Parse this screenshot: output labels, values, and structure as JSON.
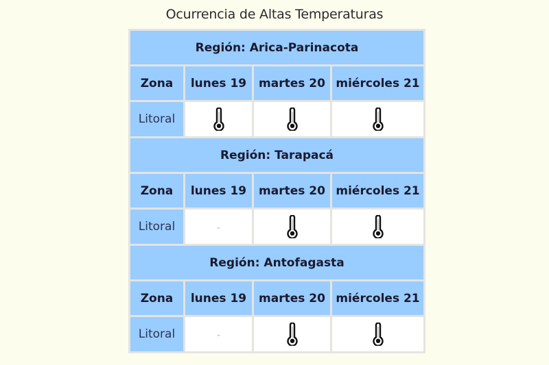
{
  "title": "Ocurrencia de Altas Temperaturas",
  "columns": {
    "zone": "Zona",
    "days": [
      "lunes 19",
      "martes 20",
      "miércoles 21"
    ]
  },
  "colors": {
    "header_bg": "#99ccff",
    "cell_bg": "#ffffff",
    "page_bg": "#fdfdee",
    "border": "#e4e4e0"
  },
  "regions": [
    {
      "label": "Región: Arica-Parinacota",
      "zone_label": "Zona",
      "days": [
        "lunes 19",
        "martes 20",
        "miércoles 21"
      ],
      "rows": [
        {
          "zone": "Litoral",
          "values": [
            "thermometer-icon",
            "thermometer-icon",
            "thermometer-icon"
          ]
        }
      ]
    },
    {
      "label": "Región: Tarapacá",
      "zone_label": "Zona",
      "days": [
        "lunes 19",
        "martes 20",
        "miércoles 21"
      ],
      "rows": [
        {
          "zone": "Litoral",
          "values": [
            "-",
            "thermometer-icon",
            "thermometer-icon"
          ]
        }
      ]
    },
    {
      "label": "Región: Antofagasta",
      "zone_label": "Zona",
      "days": [
        "lunes 19",
        "martes 20",
        "miércoles 21"
      ],
      "rows": [
        {
          "zone": "Litoral",
          "values": [
            "-",
            "thermometer-icon",
            "thermometer-icon"
          ]
        }
      ]
    }
  ]
}
